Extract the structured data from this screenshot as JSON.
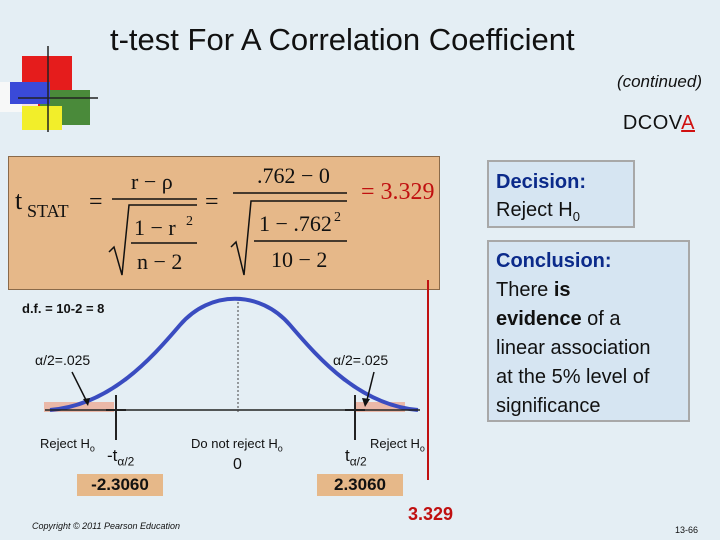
{
  "slide": {
    "title": "t-test For A Correlation Coefficient",
    "continued": "(continued)",
    "dcova_prefix": "DCOVA",
    "dcova_highlight": "A"
  },
  "formula": {
    "t": "t",
    "stat": "STAT",
    "eq": "=",
    "num1": "r − ρ",
    "den1a": "1 − r",
    "den1b": "n − 2",
    "sq": "2",
    "num2": ".762 − 0",
    "den2a": "1 − .762",
    "den2b": "10 − 2",
    "result": "= 3.329"
  },
  "decision": {
    "heading": "Decision:",
    "text": "Reject H",
    "sub": "0"
  },
  "conclusion": {
    "heading": "Conclusion:",
    "line1": "There ",
    "line1_bold": "is",
    "line2_bold": "evidence",
    "line2": " of a",
    "line3": "linear association",
    "line4": "at the 5% level of",
    "line5": "significance"
  },
  "distribution": {
    "df": "d.f. = 10-2 = 8",
    "alpha_left": "α/2=.025",
    "alpha_right": "α/2=.025",
    "reject_left": "Reject H",
    "reject_right": "Reject H",
    "do_not_reject": "Do not reject H",
    "h_sub": "o",
    "zero": "0",
    "t_left": "-t",
    "t_right": "t",
    "t_sub": "α/2",
    "crit_left": "-2.3060",
    "crit_right": "2.3060",
    "t_value": "3.329"
  },
  "footer": {
    "copyright": "Copyright © 2011 Pearson Education",
    "page": "13-66"
  },
  "colors": {
    "formula_bg": "#e6b889",
    "box_bg": "#d6e5f2",
    "curve": "#3a4cc0",
    "accent_red": "#c01010",
    "heading_blue": "#0b2a8a"
  }
}
